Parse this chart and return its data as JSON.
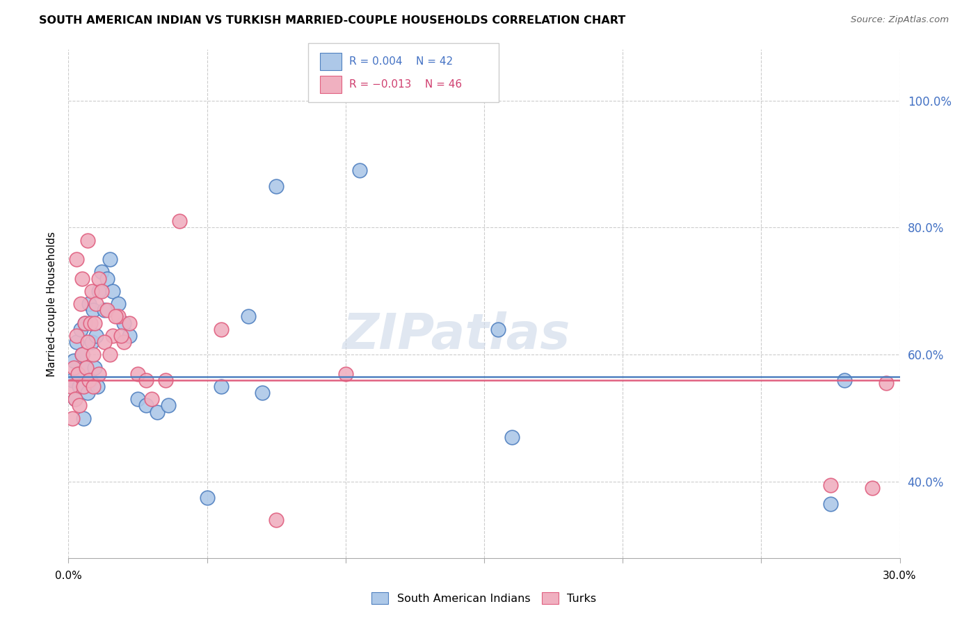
{
  "title": "SOUTH AMERICAN INDIAN VS TURKISH MARRIED-COUPLE HOUSEHOLDS CORRELATION CHART",
  "source": "Source: ZipAtlas.com",
  "ylabel": "Married-couple Households",
  "xlim": [
    0.0,
    30.0
  ],
  "ylim": [
    28.0,
    108.0
  ],
  "yticks": [
    40.0,
    60.0,
    80.0,
    100.0
  ],
  "regression_line_y_blue": 56.5,
  "regression_line_y_pink": 56.0,
  "blue_color": "#adc8e8",
  "pink_color": "#f0b0c0",
  "line_blue": "#5080c0",
  "line_pink": "#e06080",
  "legend_text_blue": "#4472c4",
  "legend_text_pink": "#d04070",
  "watermark_color": "#ccd8e8",
  "blue_x": [
    0.15,
    0.2,
    0.25,
    0.3,
    0.35,
    0.4,
    0.45,
    0.5,
    0.55,
    0.6,
    0.65,
    0.7,
    0.75,
    0.8,
    0.85,
    0.9,
    0.95,
    1.0,
    1.05,
    1.1,
    1.2,
    1.3,
    1.4,
    1.5,
    1.6,
    1.8,
    2.0,
    2.2,
    2.5,
    2.8,
    3.2,
    3.6,
    5.0,
    5.5,
    6.5,
    7.0,
    7.5,
    10.5,
    15.5,
    16.0,
    27.5,
    28.0
  ],
  "blue_y": [
    56.0,
    59.0,
    53.0,
    62.0,
    57.0,
    55.0,
    64.0,
    60.0,
    50.0,
    65.0,
    58.0,
    54.0,
    68.0,
    56.0,
    62.0,
    67.0,
    58.0,
    63.0,
    55.0,
    70.0,
    73.0,
    67.0,
    72.0,
    75.0,
    70.0,
    68.0,
    65.0,
    63.0,
    53.0,
    52.0,
    51.0,
    52.0,
    37.5,
    55.0,
    66.0,
    54.0,
    86.5,
    89.0,
    64.0,
    47.0,
    36.5,
    56.0
  ],
  "pink_x": [
    0.1,
    0.15,
    0.2,
    0.25,
    0.3,
    0.35,
    0.4,
    0.45,
    0.5,
    0.55,
    0.6,
    0.65,
    0.7,
    0.75,
    0.8,
    0.85,
    0.9,
    0.95,
    1.0,
    1.1,
    1.2,
    1.4,
    1.6,
    1.8,
    2.0,
    2.2,
    2.5,
    2.8,
    3.0,
    3.5,
    4.0,
    5.5,
    7.5,
    10.0,
    27.5,
    29.0,
    29.5,
    0.3,
    0.5,
    0.7,
    0.9,
    1.1,
    1.3,
    1.5,
    1.7,
    1.9
  ],
  "pink_y": [
    55.0,
    50.0,
    58.0,
    53.0,
    63.0,
    57.0,
    52.0,
    68.0,
    60.0,
    55.0,
    65.0,
    58.0,
    62.0,
    56.0,
    65.0,
    70.0,
    60.0,
    65.0,
    68.0,
    72.0,
    70.0,
    67.0,
    63.0,
    66.0,
    62.0,
    65.0,
    57.0,
    56.0,
    53.0,
    56.0,
    81.0,
    64.0,
    34.0,
    57.0,
    39.5,
    39.0,
    55.5,
    75.0,
    72.0,
    78.0,
    55.0,
    57.0,
    62.0,
    60.0,
    66.0,
    63.0
  ]
}
